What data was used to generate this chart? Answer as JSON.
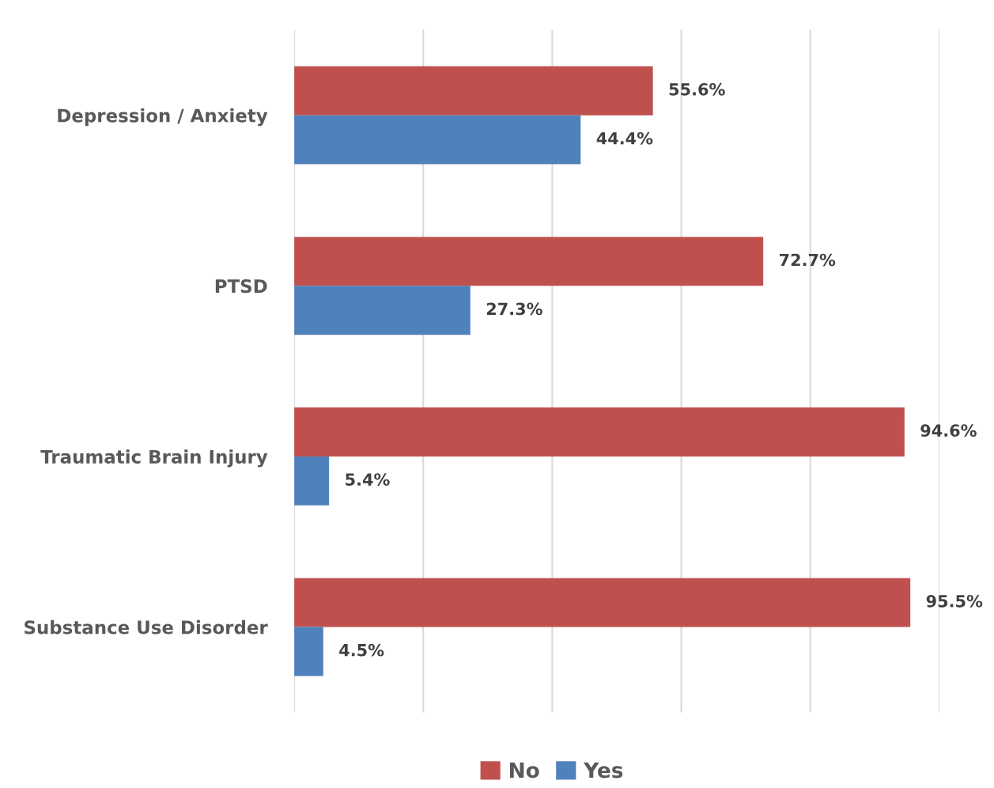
{
  "chart_data": {
    "type": "bar",
    "orientation": "horizontal",
    "categories": [
      "Depression / Anxiety",
      "PTSD",
      "Traumatic Brain Injury",
      "Substance Use Disorder"
    ],
    "series": [
      {
        "name": "No",
        "color": "#c0504d",
        "values": [
          55.6,
          72.7,
          94.6,
          95.5
        ],
        "value_labels": [
          "55.6%",
          "72.7%",
          "94.6%",
          "95.5%"
        ]
      },
      {
        "name": "Yes",
        "color": "#4f81bd",
        "values": [
          44.4,
          27.3,
          5.4,
          4.5
        ],
        "value_labels": [
          "44.4%",
          "27.3%",
          "5.4%",
          "4.5%"
        ]
      }
    ],
    "xlim": [
      0,
      100
    ],
    "xticks": [
      {
        "value": 0,
        "label": null
      },
      {
        "value": 20,
        "label": null
      },
      {
        "value": 40,
        "label": null
      },
      {
        "value": 60,
        "label": null
      },
      {
        "value": 80,
        "label": null
      },
      {
        "value": 100,
        "label": null
      }
    ],
    "grid": "x",
    "legend": "bottom",
    "tick_labels": "y"
  }
}
